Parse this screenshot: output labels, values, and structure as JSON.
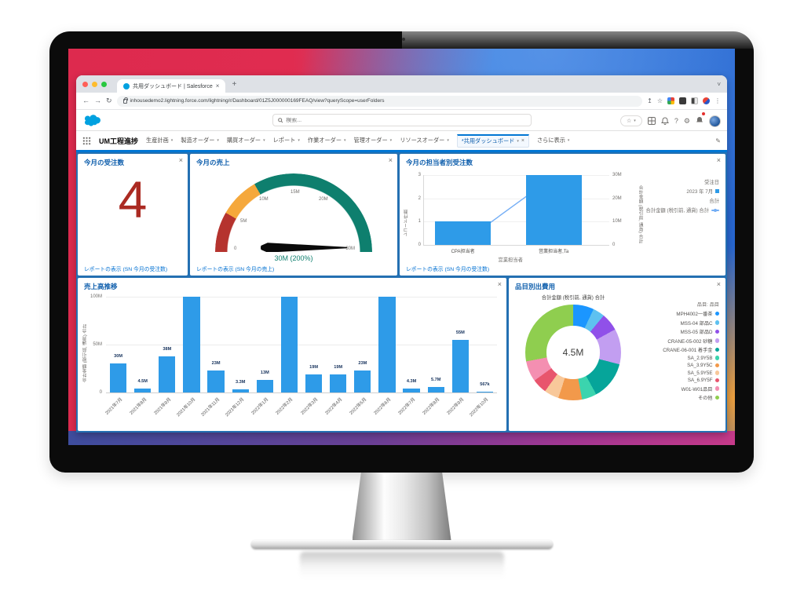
{
  "browser": {
    "tab_title": "共用ダッシュボード | Salesforce",
    "close_tab": "×",
    "new_tab": "+",
    "collapse": "˅",
    "back": "←",
    "forward": "→",
    "reload": "↻",
    "url": "inhousedemo2.lightning.force.com/lightning/r/Dashboard/01Z5J000000169FEAQ/view?queryScope=userFolders",
    "share": "↥",
    "star": "☆",
    "menu": "⋮"
  },
  "sf": {
    "search_placeholder": "検索...",
    "help": "?",
    "gear": "⚙",
    "fav_star": "☆",
    "caret": "▾",
    "app_name": "UM工程進捗",
    "tabs": [
      "生産計画",
      "製造オーダー",
      "購買オーダー",
      "レポート",
      "作業オーダー",
      "管理オーダー",
      "リソースオーダー"
    ],
    "active_tab": "*共用ダッシュボード",
    "active_tab_close": "×",
    "more_tabs": "さらに表示",
    "edit": "✎"
  },
  "cards": {
    "orders": {
      "title": "今月の受注数",
      "value": "4",
      "link": "レポートの表示 (SN 今月の受注数)",
      "close": "×"
    },
    "gauge": {
      "title": "今月の売上",
      "link": "レポートの表示 (SN 今月の売上)",
      "close": "×"
    },
    "by_rep": {
      "title": "今月の担当者別受注数",
      "link": "レポートの表示 (SN 今月の受注数)",
      "close": "×",
      "y_title": "レコード件数",
      "y2_title": "合計金額 (税引前, 通貨) 合計",
      "x_title": "営業担当者",
      "legend_header": "受注日",
      "legend_item1": "2023 年 7月",
      "legend_sub": "合計",
      "legend_item2": "合計金額 (税引前, 通貨) 合計"
    },
    "trend": {
      "title": "売上高推移",
      "close": "×",
      "y_title": "合計金額 (税引前, 通貨) 合計"
    },
    "donut": {
      "title": "品目別出費用",
      "close": "×",
      "subtitle": "合計金額 (税引前, 通貨) 合計",
      "legend_header": "品目: 品目"
    }
  },
  "chart_data": [
    {
      "type": "gauge",
      "title": "今月の売上",
      "min": 0,
      "max": 30,
      "value": 30,
      "display": "30M (200%)",
      "ticks": [
        "0",
        "5M",
        "10M",
        "15M",
        "20M",
        "30M"
      ],
      "segments": [
        {
          "to": 5,
          "color": "#B5332E"
        },
        {
          "to": 10,
          "color": "#F5A83C"
        },
        {
          "to": 30,
          "color": "#0E7F6E"
        }
      ]
    },
    {
      "type": "bar",
      "title": "今月の担当者別受注数",
      "categories": [
        "CPA担当者",
        "営業担当者,Ta"
      ],
      "yticks": [
        "3",
        "2",
        "1",
        "0"
      ],
      "y2ticks": [
        "30M",
        "20M",
        "10M",
        "0"
      ],
      "ylim": [
        0,
        3
      ],
      "y2lim": [
        0,
        30
      ],
      "series": [
        {
          "name": "レコード件数",
          "type": "bar",
          "color": "#2E9BE8",
          "values": [
            1,
            3
          ]
        },
        {
          "name": "合計金額 (税引前, 通貨) 合計",
          "type": "line",
          "color": "#74AEF5",
          "values": [
            1,
            30
          ]
        }
      ]
    },
    {
      "type": "bar",
      "title": "売上高推移",
      "ylim": [
        0,
        100
      ],
      "yticks": [
        "100M",
        "50M",
        "0"
      ],
      "bar_color": "#2E9BE8",
      "categories": [
        "2021年7月",
        "2021年8月",
        "2021年9月",
        "2021年10月",
        "2021年11月",
        "2021年12月",
        "2022年1月",
        "2022年2月",
        "2022年3月",
        "2022年4月",
        "2022年5月",
        "2022年6月",
        "2022年7月",
        "2022年8月",
        "2022年9月",
        "2022年10月"
      ],
      "values": [
        30,
        4.5,
        38,
        100,
        23,
        3.3,
        13,
        100,
        19,
        19,
        23,
        100,
        4.3,
        5.7,
        55,
        0.6
      ],
      "bar_labels": [
        "30M",
        "4.5M",
        "38M",
        "",
        "23M",
        "3.3M",
        "13M",
        "",
        "19M",
        "19M",
        "23M",
        "",
        "4.3M",
        "5.7M",
        "55M",
        "567k"
      ]
    },
    {
      "type": "pie",
      "title": "品目別出費用",
      "center_label": "4.5M",
      "segments": [
        {
          "label": "MPH4002一番茶",
          "color": "#1B96FF",
          "pct": 7
        },
        {
          "label": "MSS-04 部品C",
          "color": "#5EC1F0",
          "pct": 4
        },
        {
          "label": "MSS-05 部品D",
          "color": "#9050E9",
          "pct": 6
        },
        {
          "label": "CRANE-05-002 砂糖",
          "color": "#C29EF1",
          "pct": 12
        },
        {
          "label": "CRANE-06-001 着手金",
          "color": "#06A59A",
          "pct": 13
        },
        {
          "label": "SA_2.9Y5B",
          "color": "#3BD4AE",
          "pct": 5
        },
        {
          "label": "SA_3.9Y5C",
          "color": "#F2994B",
          "pct": 8
        },
        {
          "label": "SA_5.9Y5E",
          "color": "#F8C89A",
          "pct": 5
        },
        {
          "label": "SA_6.9Y5F",
          "color": "#E8556D",
          "pct": 5
        },
        {
          "label": "W01-W01品目",
          "color": "#F48FB1",
          "pct": 7
        },
        {
          "label": "その他",
          "color": "#8FCE4F",
          "pct": 28
        }
      ]
    }
  ]
}
